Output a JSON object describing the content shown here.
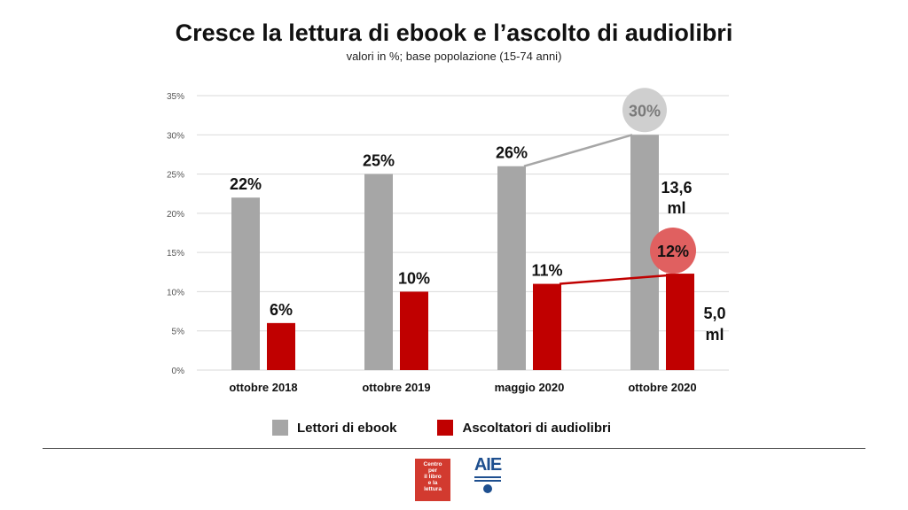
{
  "chart_data": {
    "type": "bar",
    "title": "Cresce la lettura di ebook e l’ascolto di audiolibri",
    "subtitle": "valori in %; base popolazione (15-74 anni)",
    "categories": [
      "ottobre 2018",
      "ottobre 2019",
      "maggio 2020",
      "ottobre 2020"
    ],
    "series": [
      {
        "name": "Lettori di ebook",
        "values": [
          22,
          25,
          26,
          30
        ],
        "labels": [
          "22%",
          "25%",
          "26%",
          "30%"
        ],
        "color": "#a6a6a6"
      },
      {
        "name": "Ascoltatori di audiolibri",
        "values": [
          6,
          10,
          11,
          12.3
        ],
        "labels": [
          "6%",
          "10%",
          "11%",
          "12%"
        ],
        "color": "#c00000"
      }
    ],
    "ylim": [
      0,
      35
    ],
    "yticks": [
      "0%",
      "5%",
      "10%",
      "15%",
      "20%",
      "25%",
      "30%",
      "35%"
    ],
    "grid": true,
    "legend_position": "bottom",
    "annotations": [
      {
        "text": "13,6",
        "text2": "ml"
      },
      {
        "text": "5,0",
        "text2": "ml"
      }
    ],
    "highlight_colors": {
      "ebook_circle": "#cfcfcf",
      "audio_circle": "#e06060"
    }
  },
  "logos": {
    "cepell_text": [
      "Centro",
      "per",
      "il libro",
      "e la",
      "lettura"
    ],
    "aie_text": "AIE"
  }
}
